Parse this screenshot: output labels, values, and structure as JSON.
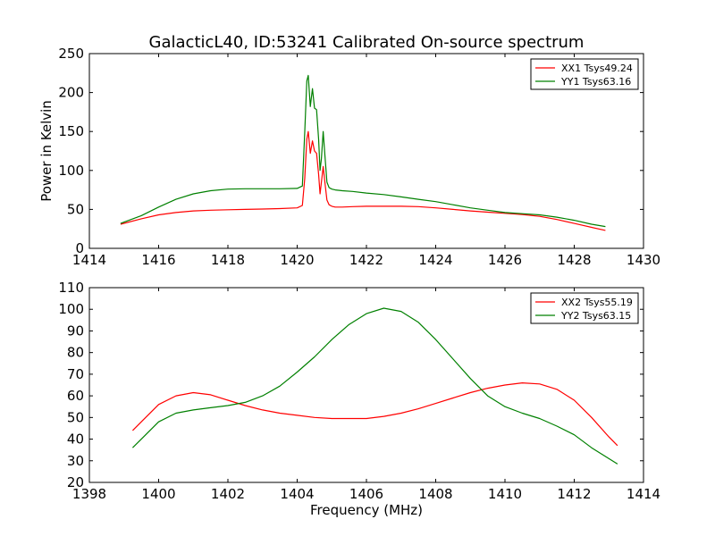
{
  "chart_data": [
    {
      "type": "line",
      "title": "GalacticL40, ID:53241 Calibrated On-source spectrum",
      "xlabel": "",
      "ylabel": "Power in Kelvin",
      "xlim": [
        1414,
        1430
      ],
      "ylim": [
        0,
        250
      ],
      "xticks": [
        "1414",
        "1416",
        "1418",
        "1420",
        "1422",
        "1424",
        "1426",
        "1428",
        "1430"
      ],
      "yticks": [
        "0",
        "50",
        "100",
        "150",
        "200",
        "250"
      ],
      "legend_position": "top-right",
      "series": [
        {
          "name": "XX1 Tsys49.24",
          "color": "#ff0000",
          "x": [
            1414.9,
            1415.5,
            1416.0,
            1416.5,
            1417.0,
            1417.5,
            1418.0,
            1418.5,
            1419.0,
            1419.5,
            1420.0,
            1420.15,
            1420.22,
            1420.28,
            1420.32,
            1420.38,
            1420.44,
            1420.5,
            1420.56,
            1420.62,
            1420.66,
            1420.7,
            1420.75,
            1420.8,
            1420.86,
            1420.92,
            1421.0,
            1421.1,
            1421.3,
            1421.6,
            1422.0,
            1422.5,
            1423.0,
            1423.5,
            1424.0,
            1424.5,
            1425.0,
            1425.5,
            1426.0,
            1426.5,
            1427.0,
            1427.5,
            1428.0,
            1428.5,
            1428.9
          ],
          "y": [
            31,
            38,
            43,
            46,
            48,
            49,
            49.5,
            50,
            50.5,
            51,
            52,
            55,
            90,
            140,
            150,
            122,
            138,
            125,
            122,
            95,
            70,
            85,
            105,
            85,
            62,
            56,
            54,
            53,
            53,
            53.5,
            54,
            54,
            54,
            53.5,
            52,
            50,
            48,
            46.5,
            45,
            43.5,
            41,
            37,
            32,
            27,
            23
          ]
        },
        {
          "name": "YY1 Tsys63.16",
          "color": "#008000",
          "x": [
            1414.9,
            1415.5,
            1416.0,
            1416.5,
            1417.0,
            1417.5,
            1418.0,
            1418.5,
            1419.0,
            1419.5,
            1420.0,
            1420.15,
            1420.22,
            1420.28,
            1420.32,
            1420.38,
            1420.44,
            1420.5,
            1420.56,
            1420.62,
            1420.66,
            1420.7,
            1420.75,
            1420.8,
            1420.86,
            1420.92,
            1421.0,
            1421.1,
            1421.3,
            1421.6,
            1422.0,
            1422.5,
            1423.0,
            1423.5,
            1424.0,
            1424.5,
            1425.0,
            1425.5,
            1426.0,
            1426.5,
            1427.0,
            1427.5,
            1428.0,
            1428.5,
            1428.9
          ],
          "y": [
            32,
            42,
            53,
            63,
            70,
            74,
            76,
            76.5,
            76.5,
            76.5,
            77,
            80,
            150,
            215,
            222,
            182,
            205,
            180,
            178,
            140,
            100,
            115,
            150,
            120,
            85,
            78,
            76,
            75,
            74,
            73,
            71,
            69,
            66,
            63,
            60,
            56,
            52,
            49,
            46,
            44.5,
            43,
            40,
            36,
            31,
            28
          ]
        }
      ]
    },
    {
      "type": "line",
      "title": "",
      "xlabel": "Frequency (MHz)",
      "ylabel": "",
      "xlim": [
        1398,
        1414
      ],
      "ylim": [
        20,
        110
      ],
      "xticks": [
        "1398",
        "1400",
        "1402",
        "1404",
        "1406",
        "1408",
        "1410",
        "1412",
        "1414"
      ],
      "yticks": [
        "20",
        "30",
        "40",
        "50",
        "60",
        "70",
        "80",
        "90",
        "100",
        "110"
      ],
      "legend_position": "top-right",
      "series": [
        {
          "name": "XX2 Tsys55.19",
          "color": "#ff0000",
          "x": [
            1399.25,
            1399.5,
            1400.0,
            1400.5,
            1401.0,
            1401.5,
            1402.0,
            1402.5,
            1403.0,
            1403.5,
            1404.0,
            1404.5,
            1405.0,
            1405.5,
            1406.0,
            1406.5,
            1407.0,
            1407.5,
            1408.0,
            1408.5,
            1409.0,
            1409.5,
            1410.0,
            1410.5,
            1411.0,
            1411.5,
            1412.0,
            1412.5,
            1413.0,
            1413.25
          ],
          "y": [
            44,
            48,
            56,
            60,
            61.5,
            60.5,
            58,
            55.5,
            53.5,
            52,
            51,
            50,
            49.5,
            49.5,
            49.5,
            50.5,
            52,
            54,
            56.5,
            59,
            61.5,
            63.5,
            65,
            66,
            65.5,
            63,
            58,
            50,
            41,
            37
          ]
        },
        {
          "name": "YY2 Tsys63.15",
          "color": "#008000",
          "x": [
            1399.25,
            1399.5,
            1400.0,
            1400.5,
            1401.0,
            1401.5,
            1402.0,
            1402.5,
            1403.0,
            1403.5,
            1404.0,
            1404.5,
            1405.0,
            1405.5,
            1406.0,
            1406.5,
            1407.0,
            1407.5,
            1408.0,
            1408.5,
            1409.0,
            1409.5,
            1410.0,
            1410.5,
            1411.0,
            1411.5,
            1412.0,
            1412.5,
            1413.0,
            1413.25
          ],
          "y": [
            36,
            40,
            48,
            52,
            53.5,
            54.5,
            55.5,
            57,
            60,
            64.5,
            71,
            78,
            86,
            93,
            98,
            100.5,
            99,
            94,
            86,
            77,
            68,
            60,
            55,
            52,
            49.5,
            46,
            42,
            36,
            31,
            28.5
          ]
        }
      ]
    }
  ]
}
